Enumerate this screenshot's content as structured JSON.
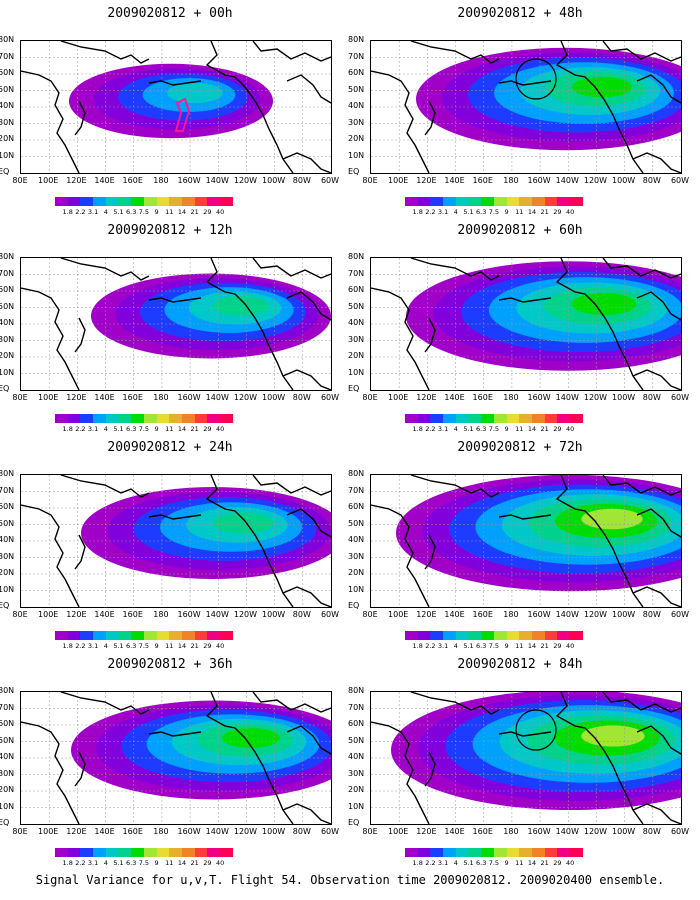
{
  "panels": [
    {
      "title": "2009020812 + 00h",
      "intensity": 0.35,
      "circle": false,
      "target": true
    },
    {
      "title": "2009020812 + 48h",
      "intensity": 0.75,
      "circle": true,
      "target": false
    },
    {
      "title": "2009020812 + 12h",
      "intensity": 0.5,
      "circle": false,
      "target": false
    },
    {
      "title": "2009020812 + 60h",
      "intensity": 0.85,
      "circle": false,
      "target": false
    },
    {
      "title": "2009020812 + 24h",
      "intensity": 0.6,
      "circle": false,
      "target": false
    },
    {
      "title": "2009020812 + 72h",
      "intensity": 0.95,
      "circle": false,
      "target": false
    },
    {
      "title": "2009020812 + 36h",
      "intensity": 0.7,
      "circle": false,
      "target": false
    },
    {
      "title": "2009020812 + 84h",
      "intensity": 1.0,
      "circle": true,
      "target": false
    }
  ],
  "y_axis_labels": [
    "80N",
    "70N",
    "60N",
    "50N",
    "40N",
    "30N",
    "20N",
    "10N",
    "EQ"
  ],
  "x_axis_labels": [
    "80E",
    "100E",
    "120E",
    "140E",
    "160E",
    "180",
    "160W",
    "140W",
    "120W",
    "100W",
    "80W",
    "60W"
  ],
  "colorbar": {
    "labels": [
      "1.8",
      "2.2",
      "3.1",
      "4",
      "5.1",
      "6.3",
      "7.5",
      "9",
      "11",
      "14",
      "21",
      "29",
      "40"
    ],
    "colors": [
      "#a000c8",
      "#8200dc",
      "#1e3cff",
      "#00a0ff",
      "#00c8c8",
      "#00d28c",
      "#00dc00",
      "#a0e632",
      "#e6dc32",
      "#e6af2d",
      "#f08228",
      "#fa3c3c",
      "#f00082"
    ]
  },
  "caption": "Signal Variance for u,v,T. Flight 54. Observation time 2009020812. 2009020400 ensemble."
}
